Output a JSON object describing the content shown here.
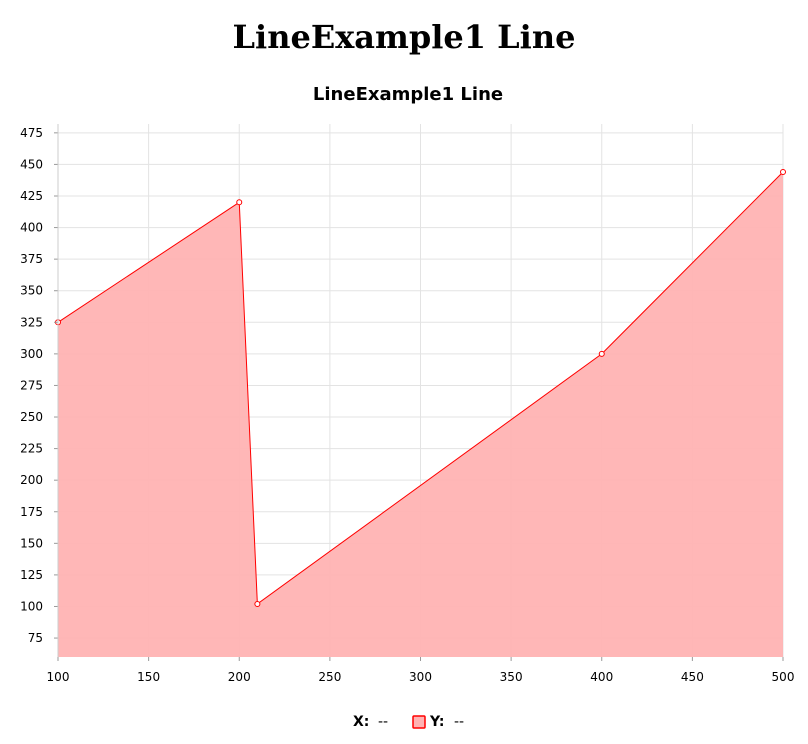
{
  "page": {
    "heading": "LineExample1 Line"
  },
  "chart_data": {
    "type": "area",
    "title": "LineExample1 Line",
    "xlabel": "",
    "ylabel": "",
    "x": [
      100,
      200,
      210,
      400,
      500
    ],
    "series": [
      {
        "values": [
          325,
          420,
          102,
          300,
          444
        ],
        "color": "#ff0000",
        "fill": "#ffb3b3"
      }
    ],
    "xlim": [
      100,
      500
    ],
    "ylim": [
      60,
      482
    ],
    "x_ticks": [
      100,
      150,
      200,
      250,
      300,
      350,
      400,
      450,
      500
    ],
    "y_ticks": [
      75,
      100,
      125,
      150,
      175,
      200,
      225,
      250,
      275,
      300,
      325,
      350,
      375,
      400,
      425,
      450,
      475
    ],
    "grid": true,
    "legend": {
      "position": "bottom",
      "x_label": "X:",
      "x_value": "--",
      "y_label": "Y:",
      "y_value": "--"
    }
  }
}
